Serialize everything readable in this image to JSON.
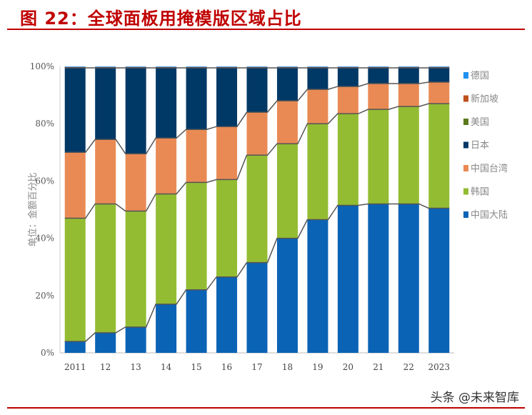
{
  "title": "图 22：全球面板用掩模版区域占比",
  "watermark": "头条 @未来智库",
  "chart_data": {
    "type": "bar",
    "stacked": true,
    "normalized": true,
    "ylabel": "单位：金额百分比",
    "ylim": [
      0,
      100
    ],
    "yticks": [
      "0%",
      "20%",
      "40%",
      "60%",
      "80%",
      "100%"
    ],
    "categories": [
      "2011",
      "12",
      "13",
      "14",
      "15",
      "16",
      "17",
      "18",
      "19",
      "20",
      "21",
      "22",
      "2023"
    ],
    "legend_position": "right",
    "series": [
      {
        "name": "中国大陆",
        "color": "#0a63b5",
        "values": [
          4,
          7,
          9,
          17,
          22,
          26.5,
          31.5,
          40,
          46.5,
          51.5,
          52,
          52,
          50.5
        ]
      },
      {
        "name": "韩国",
        "color": "#93bc32",
        "values": [
          43,
          45,
          40.5,
          38.5,
          37.5,
          34,
          37.5,
          33,
          33.5,
          32,
          33,
          34,
          36.5
        ]
      },
      {
        "name": "中国台湾",
        "color": "#e98a54",
        "values": [
          23,
          22.5,
          20,
          19.5,
          18.5,
          18.5,
          15,
          15,
          12,
          9.5,
          9,
          8,
          7.5
        ]
      },
      {
        "name": "日本",
        "color": "#003866",
        "values": [
          29.5,
          25,
          30,
          24.5,
          21.5,
          20.5,
          15.5,
          11.5,
          7.5,
          6.5,
          5.5,
          5.5,
          5
        ]
      },
      {
        "name": "美国",
        "color": "#5b7a1e",
        "values": [
          0,
          0,
          0,
          0,
          0,
          0,
          0,
          0,
          0,
          0,
          0,
          0,
          0
        ]
      },
      {
        "name": "新加坡",
        "color": "#c0501e",
        "values": [
          0.3,
          0.3,
          0.3,
          0.3,
          0.3,
          0.3,
          0.3,
          0.3,
          0.3,
          0.3,
          0.3,
          0.3,
          0.3
        ]
      },
      {
        "name": "德国",
        "color": "#1e90f0",
        "values": [
          0.2,
          0.2,
          0.2,
          0.2,
          0.2,
          0.2,
          0.2,
          0.2,
          0.2,
          0.2,
          0.2,
          0.2,
          0.2
        ]
      }
    ]
  }
}
